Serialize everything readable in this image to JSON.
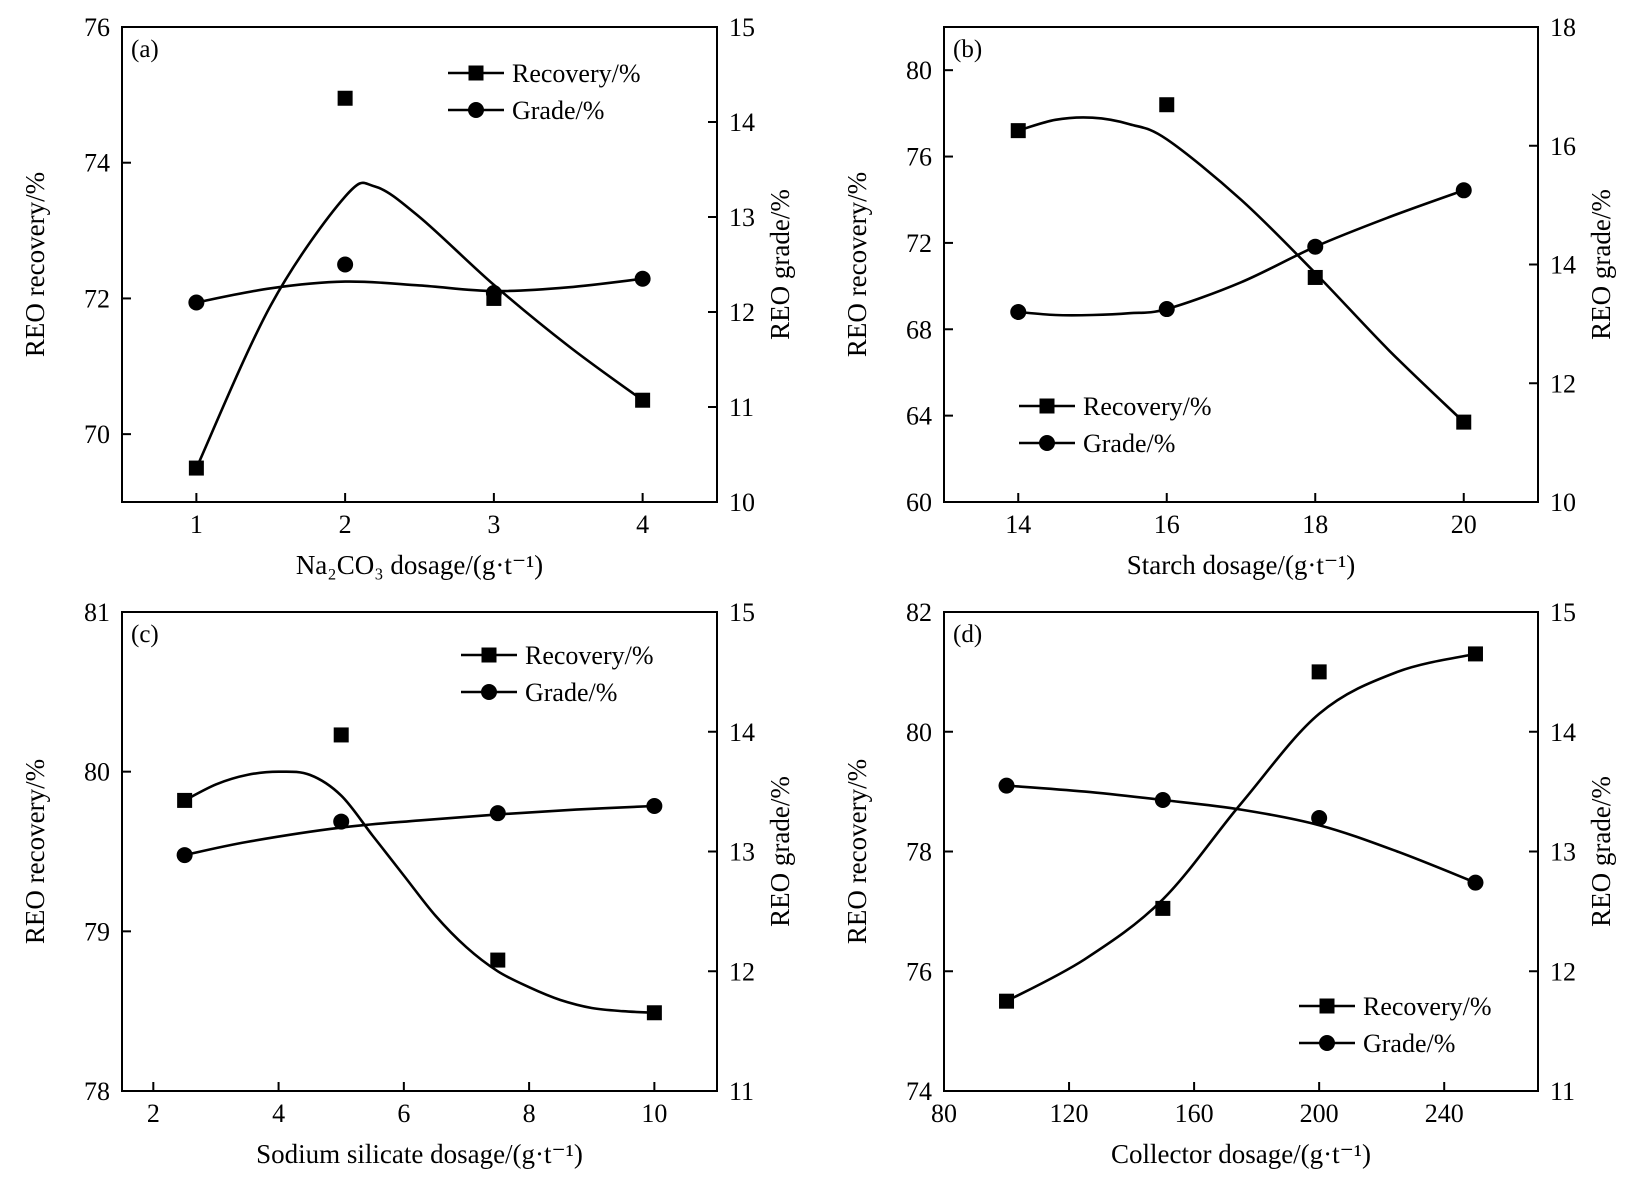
{
  "chart_data": [
    {
      "type": "scatter",
      "panel": "(a)",
      "xlabel": "Na₂CO₃ dosage/(g·t⁻¹)",
      "ylabel": "REO recovery/%",
      "y2label": "REO grade/%",
      "xlim": [
        0.5,
        4.5
      ],
      "ylim": [
        69,
        76
      ],
      "y2lim": [
        10,
        15
      ],
      "xticks": [
        1,
        2,
        3,
        4
      ],
      "yticks": [
        70,
        72,
        74,
        76
      ],
      "y2ticks": [
        10,
        11,
        12,
        13,
        14,
        15
      ],
      "legend_position": "top-right",
      "series": [
        {
          "name": "Recovery/%",
          "axis": "left",
          "marker": "square",
          "x": [
            1,
            2,
            3,
            4
          ],
          "values": [
            69.5,
            74.95,
            72.0,
            70.5
          ],
          "curve": [
            [
              1,
              69.5
            ],
            [
              1.5,
              71.9
            ],
            [
              2,
              73.5
            ],
            [
              2.2,
              73.65
            ],
            [
              2.5,
              73.2
            ],
            [
              3,
              72.2
            ],
            [
              3.5,
              71.3
            ],
            [
              4,
              70.5
            ]
          ]
        },
        {
          "name": "Grade/%",
          "axis": "right",
          "marker": "circle",
          "x": [
            1,
            2,
            3,
            4
          ],
          "values": [
            12.1,
            12.5,
            12.2,
            12.35
          ],
          "curve": [
            [
              1,
              12.1
            ],
            [
              1.5,
              12.25
            ],
            [
              2,
              12.32
            ],
            [
              2.5,
              12.28
            ],
            [
              3,
              12.22
            ],
            [
              3.5,
              12.26
            ],
            [
              4,
              12.35
            ]
          ]
        }
      ]
    },
    {
      "type": "scatter",
      "panel": "(b)",
      "xlabel": "Starch dosage/(g·t⁻¹)",
      "ylabel": "REO recovery/%",
      "y2label": "REO grade/%",
      "xlim": [
        13,
        21
      ],
      "ylim": [
        60,
        82
      ],
      "y2lim": [
        10,
        18
      ],
      "xticks": [
        14,
        16,
        18,
        20
      ],
      "yticks": [
        60,
        64,
        68,
        72,
        76,
        80
      ],
      "y2ticks": [
        10,
        12,
        14,
        16,
        18
      ],
      "legend_position": "bottom-left",
      "series": [
        {
          "name": "Recovery/%",
          "axis": "left",
          "marker": "square",
          "x": [
            14,
            16,
            18,
            20
          ],
          "values": [
            77.2,
            78.4,
            70.4,
            63.7
          ],
          "curve": [
            [
              14,
              77.2
            ],
            [
              14.5,
              77.7
            ],
            [
              15,
              77.8
            ],
            [
              15.5,
              77.5
            ],
            [
              16,
              76.8
            ],
            [
              17,
              74.0
            ],
            [
              18,
              70.6
            ],
            [
              19,
              67.0
            ],
            [
              20,
              63.7
            ]
          ]
        },
        {
          "name": "Grade/%",
          "axis": "right",
          "marker": "circle",
          "x": [
            14,
            16,
            18,
            20
          ],
          "values": [
            13.2,
            13.25,
            14.3,
            15.25
          ],
          "curve": [
            [
              14,
              13.2
            ],
            [
              14.5,
              13.15
            ],
            [
              15,
              13.15
            ],
            [
              15.5,
              13.18
            ],
            [
              16,
              13.25
            ],
            [
              17,
              13.7
            ],
            [
              18,
              14.3
            ],
            [
              19,
              14.8
            ],
            [
              20,
              15.25
            ]
          ]
        }
      ]
    },
    {
      "type": "scatter",
      "panel": "(c)",
      "xlabel": "Sodium silicate dosage/(g·t⁻¹)",
      "ylabel": "REO recovery/%",
      "y2label": "REO grade/%",
      "xlim": [
        1.5,
        11
      ],
      "ylim": [
        78,
        81
      ],
      "y2lim": [
        11,
        15
      ],
      "xticks": [
        2,
        4,
        6,
        8,
        10
      ],
      "yticks": [
        78,
        79,
        80,
        81
      ],
      "y2ticks": [
        11,
        12,
        13,
        14,
        15
      ],
      "legend_position": "top-right",
      "series": [
        {
          "name": "Recovery/%",
          "axis": "left",
          "marker": "square",
          "x": [
            2.5,
            5,
            7.5,
            10
          ],
          "values": [
            79.82,
            80.23,
            78.82,
            78.49
          ],
          "curve": [
            [
              2.5,
              79.82
            ],
            [
              3,
              79.92
            ],
            [
              3.5,
              79.98
            ],
            [
              4,
              80.0
            ],
            [
              4.5,
              79.98
            ],
            [
              5,
              79.85
            ],
            [
              5.5,
              79.6
            ],
            [
              6,
              79.35
            ],
            [
              6.5,
              79.1
            ],
            [
              7,
              78.9
            ],
            [
              7.5,
              78.75
            ],
            [
              8,
              78.65
            ],
            [
              8.5,
              78.57
            ],
            [
              9,
              78.52
            ],
            [
              9.5,
              78.5
            ],
            [
              10,
              78.49
            ]
          ]
        },
        {
          "name": "Grade/%",
          "axis": "right",
          "marker": "circle",
          "x": [
            2.5,
            5,
            7.5,
            10
          ],
          "values": [
            12.97,
            13.25,
            13.32,
            13.38
          ],
          "curve": [
            [
              2.5,
              12.97
            ],
            [
              3.5,
              13.08
            ],
            [
              5,
              13.2
            ],
            [
              6.25,
              13.26
            ],
            [
              7.5,
              13.31
            ],
            [
              8.75,
              13.35
            ],
            [
              10,
              13.38
            ]
          ]
        }
      ]
    },
    {
      "type": "scatter",
      "panel": "(d)",
      "xlabel": "Collector dosage/(g·t⁻¹)",
      "ylabel": "REO recovery/%",
      "y2label": "REO grade/%",
      "xlim": [
        80,
        270
      ],
      "ylim": [
        74,
        82
      ],
      "y2lim": [
        11,
        15
      ],
      "xticks": [
        80,
        120,
        160,
        200,
        240
      ],
      "yticks": [
        74,
        76,
        78,
        80,
        82
      ],
      "y2ticks": [
        11,
        12,
        13,
        14,
        15
      ],
      "legend_position": "bottom-right",
      "series": [
        {
          "name": "Recovery/%",
          "axis": "left",
          "marker": "square",
          "x": [
            100,
            150,
            200,
            250
          ],
          "values": [
            75.5,
            77.05,
            81.0,
            81.3
          ],
          "curve": [
            [
              100,
              75.5
            ],
            [
              125,
              76.2
            ],
            [
              150,
              77.2
            ],
            [
              175,
              78.8
            ],
            [
              200,
              80.3
            ],
            [
              225,
              81.0
            ],
            [
              250,
              81.3
            ]
          ]
        },
        {
          "name": "Grade/%",
          "axis": "right",
          "marker": "circle",
          "x": [
            100,
            150,
            200,
            250
          ],
          "values": [
            13.55,
            13.43,
            13.28,
            12.74
          ],
          "curve": [
            [
              100,
              13.55
            ],
            [
              125,
              13.5
            ],
            [
              150,
              13.43
            ],
            [
              175,
              13.35
            ],
            [
              200,
              13.22
            ],
            [
              225,
              13.0
            ],
            [
              250,
              12.74
            ]
          ]
        }
      ]
    }
  ]
}
